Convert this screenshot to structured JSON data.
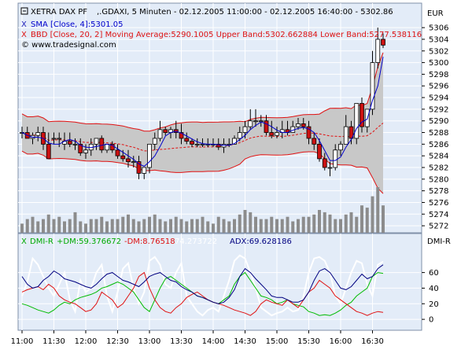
{
  "colors": {
    "panel_bg": "#e3ecf8",
    "band_fill": "#c8c8c8",
    "band_line": "#e01010",
    "ma_line": "#e01010",
    "sma_line": "#0000cc",
    "bull_candle": "#ffffff",
    "bear_candle": "#cc1111",
    "volume": "#8c8c8c",
    "dmi_plus": "#00bb00",
    "dmi_minus": "#e01010",
    "dx": "#ffffff",
    "adx": "#000080",
    "grid": "#ffffff",
    "axis_text": "#000000"
  },
  "header": {
    "line1_instrument": "XETRA DAX PF",
    "line1_rest": ",.GDAXI, 5 Minuten - 02.12.2005 11:00:00 - 02.12.2005 16:40:00 - 5302.86",
    "line2": "SMA [Close, 4]:5301.05",
    "line3": "BBD [Close, 20, 2] Moving Average:5290.1005 Upper Band:5302.662884 Lower Band:5277.538116",
    "line4": "© www.tradesignal.com",
    "currency": "EUR"
  },
  "lower_panel": {
    "dmi_r_label": "DMI-R",
    "plus_dm": "+DM:59.376672",
    "minus_dm": "-DM:8.76518",
    "dx": "74.273722",
    "adx": "ADX:69.628186",
    "right_label": "DMI-R"
  },
  "chart_data": [
    {
      "type": "candlestick",
      "title": "XETRA DAX PF ,.GDAXI, 5 Minuten - 02.12.2005 11:00:00 - 02.12.2005 16:40:00 - 5302.86",
      "x": [
        "11:00",
        "11:05",
        "11:10",
        "11:15",
        "11:20",
        "11:25",
        "11:30",
        "11:35",
        "11:40",
        "11:45",
        "11:50",
        "11:55",
        "12:00",
        "12:05",
        "12:10",
        "12:15",
        "12:20",
        "12:25",
        "12:30",
        "12:35",
        "12:40",
        "12:45",
        "12:50",
        "12:55",
        "13:00",
        "13:05",
        "13:10",
        "13:15",
        "13:20",
        "13:25",
        "13:30",
        "13:35",
        "13:40",
        "13:45",
        "13:50",
        "13:55",
        "14:00",
        "14:05",
        "14:10",
        "14:15",
        "14:20",
        "14:25",
        "14:30",
        "14:35",
        "14:40",
        "14:45",
        "14:50",
        "14:55",
        "15:00",
        "15:05",
        "15:10",
        "15:15",
        "15:20",
        "15:25",
        "15:30",
        "15:35",
        "15:40",
        "15:45",
        "15:50",
        "15:55",
        "16:00",
        "16:05",
        "16:10",
        "16:15",
        "16:20",
        "16:25",
        "16:30",
        "16:35",
        "16:40"
      ],
      "open": [
        5288,
        5288,
        5287,
        5287.5,
        5288,
        5286,
        5287,
        5287,
        5286,
        5286.5,
        5286,
        5286,
        5284.5,
        5285,
        5286,
        5287,
        5285,
        5286,
        5285,
        5284,
        5283.5,
        5283,
        5283,
        5281,
        5282,
        5286,
        5287,
        5288.5,
        5288,
        5288.5,
        5288,
        5287,
        5286.5,
        5286,
        5286,
        5286,
        5286,
        5286,
        5285.5,
        5286,
        5286,
        5287,
        5288,
        5289,
        5290,
        5290,
        5290,
        5288,
        5287.5,
        5288,
        5288.5,
        5288,
        5289,
        5289.5,
        5289,
        5287,
        5286,
        5283.5,
        5282,
        5282,
        5285,
        5286,
        5289,
        5287,
        5293,
        5289,
        5292,
        5300,
        5304
      ],
      "high": [
        5289,
        5289,
        5288,
        5289,
        5289,
        5288,
        5288,
        5288,
        5288,
        5288,
        5287,
        5287,
        5286,
        5287,
        5287,
        5287.5,
        5286,
        5286.5,
        5286,
        5285,
        5285,
        5284,
        5284,
        5282,
        5286,
        5288,
        5290,
        5289,
        5289,
        5290,
        5289.5,
        5288,
        5287,
        5287,
        5287,
        5287,
        5287,
        5287,
        5287,
        5287,
        5287.5,
        5289,
        5290,
        5292,
        5292,
        5291,
        5291,
        5290,
        5289,
        5290,
        5290,
        5290,
        5290.5,
        5290.5,
        5290,
        5288,
        5287,
        5284.5,
        5283,
        5286,
        5286.5,
        5291,
        5290,
        5293,
        5294,
        5292,
        5302,
        5306,
        5305
      ],
      "low": [
        5287,
        5287,
        5286,
        5286.5,
        5285,
        5283.5,
        5286,
        5285.5,
        5285,
        5285.5,
        5285,
        5284,
        5283.5,
        5284,
        5285,
        5284.5,
        5284.5,
        5284.5,
        5283.5,
        5283,
        5282,
        5282,
        5280,
        5280,
        5281,
        5285,
        5286.5,
        5287.5,
        5287,
        5287,
        5286,
        5286,
        5285.5,
        5285.5,
        5285.5,
        5285.5,
        5285.5,
        5285,
        5284.5,
        5285.5,
        5286,
        5286.5,
        5287,
        5288.5,
        5289,
        5289,
        5287.5,
        5287,
        5287,
        5287,
        5287.5,
        5288,
        5288.5,
        5288.5,
        5286,
        5285,
        5283,
        5281.5,
        5280.5,
        5281.5,
        5284,
        5286,
        5286,
        5286,
        5288,
        5288,
        5291,
        5299,
        5302.5
      ],
      "close": [
        5288,
        5287,
        5287.5,
        5288,
        5286,
        5283.5,
        5287,
        5287,
        5286.5,
        5286,
        5286,
        5284.5,
        5285,
        5286,
        5287,
        5285,
        5286,
        5285,
        5284,
        5283.5,
        5283,
        5283,
        5281,
        5282,
        5286,
        5287,
        5288.5,
        5288,
        5288.5,
        5288,
        5287,
        5286.5,
        5286,
        5286,
        5286,
        5286,
        5286,
        5285.5,
        5286,
        5286,
        5287,
        5288,
        5289,
        5290,
        5290,
        5290,
        5288,
        5287.5,
        5288,
        5288.5,
        5288,
        5289,
        5289.5,
        5289,
        5287,
        5286,
        5283.5,
        5282,
        5282,
        5285,
        5286,
        5289,
        5287,
        5293,
        5289,
        5292,
        5300,
        5304,
        5303
      ],
      "volume_relative": [
        0.2,
        0.3,
        0.35,
        0.25,
        0.3,
        0.4,
        0.3,
        0.35,
        0.25,
        0.3,
        0.45,
        0.25,
        0.2,
        0.3,
        0.3,
        0.35,
        0.25,
        0.3,
        0.3,
        0.35,
        0.4,
        0.3,
        0.25,
        0.3,
        0.35,
        0.4,
        0.3,
        0.25,
        0.3,
        0.35,
        0.3,
        0.25,
        0.3,
        0.3,
        0.35,
        0.25,
        0.2,
        0.35,
        0.3,
        0.25,
        0.3,
        0.4,
        0.5,
        0.45,
        0.35,
        0.3,
        0.3,
        0.35,
        0.3,
        0.3,
        0.35,
        0.25,
        0.3,
        0.35,
        0.35,
        0.4,
        0.5,
        0.45,
        0.4,
        0.3,
        0.3,
        0.4,
        0.45,
        0.35,
        0.6,
        0.55,
        0.8,
        1.0,
        0.6
      ],
      "sma_4": [
        5288,
        5287.5,
        5287.2,
        5287.2,
        5287,
        5286.2,
        5286,
        5286,
        5286.5,
        5286.8,
        5286.5,
        5285.8,
        5285.5,
        5285.4,
        5285.6,
        5285.8,
        5286,
        5285.8,
        5285.2,
        5284.6,
        5284,
        5283.4,
        5282.6,
        5282.2,
        5283,
        5284,
        5285.6,
        5287.4,
        5288,
        5288.2,
        5287.9,
        5287.4,
        5286.9,
        5286.4,
        5286.1,
        5286,
        5286,
        5285.9,
        5285.8,
        5285.8,
        5286.1,
        5286.8,
        5287.5,
        5288.5,
        5289.2,
        5289.8,
        5289.5,
        5289,
        5288.4,
        5288,
        5288,
        5288.4,
        5288.7,
        5288.9,
        5288.6,
        5288,
        5286.6,
        5284.9,
        5283.2,
        5283.2,
        5283.8,
        5285.5,
        5286.8,
        5288.7,
        5289.8,
        5290.3,
        5293.5,
        5296,
        5301
      ]
    },
    {
      "type": "line",
      "title": "DMI-R",
      "series_names": [
        "+DM",
        "-DM",
        "DX",
        "ADX"
      ]
    }
  ],
  "axes": {
    "y_ticks": [
      5272,
      5274,
      5276,
      5278,
      5280,
      5282,
      5284,
      5286,
      5288,
      5290,
      5292,
      5294,
      5296,
      5298,
      5300,
      5302,
      5304,
      5306
    ],
    "y_min": 5270.8,
    "y_max": 5310.2,
    "dmi_ticks": [
      0,
      20,
      40,
      60
    ],
    "dmi_min": -14,
    "dmi_max": 110,
    "x_ticks": [
      "11:00",
      "11:30",
      "12:00",
      "12:30",
      "13:00",
      "13:30",
      "14:00",
      "14:30",
      "15:00",
      "15:30",
      "16:00",
      "16:30"
    ]
  },
  "dmi_series": {
    "plus": [
      20,
      18,
      15,
      12,
      10,
      8,
      12,
      18,
      22,
      20,
      25,
      28,
      30,
      32,
      35,
      40,
      42,
      45,
      48,
      45,
      40,
      35,
      25,
      15,
      10,
      25,
      40,
      52,
      55,
      50,
      45,
      40,
      35,
      30,
      28,
      25,
      22,
      20,
      25,
      30,
      45,
      55,
      60,
      50,
      40,
      30,
      28,
      25,
      20,
      22,
      25,
      20,
      18,
      16,
      10,
      8,
      5,
      6,
      5,
      8,
      12,
      18,
      22,
      30,
      35,
      40,
      55,
      60,
      59
    ],
    "minus": [
      35,
      38,
      40,
      42,
      38,
      45,
      40,
      30,
      25,
      22,
      20,
      15,
      10,
      12,
      20,
      35,
      30,
      25,
      15,
      20,
      30,
      40,
      55,
      60,
      40,
      25,
      15,
      10,
      8,
      15,
      20,
      28,
      32,
      35,
      30,
      25,
      22,
      20,
      18,
      15,
      12,
      10,
      8,
      5,
      10,
      20,
      25,
      22,
      20,
      18,
      25,
      20,
      15,
      25,
      35,
      40,
      50,
      45,
      40,
      30,
      25,
      20,
      15,
      10,
      8,
      5,
      8,
      10,
      9
    ],
    "dx": [
      30,
      48,
      78,
      70,
      55,
      40,
      30,
      45,
      60,
      25,
      10,
      50,
      35,
      40,
      60,
      70,
      30,
      10,
      35,
      65,
      72,
      40,
      20,
      35,
      75,
      80,
      70,
      45,
      40,
      60,
      72,
      30,
      20,
      10,
      5,
      12,
      15,
      10,
      30,
      50,
      75,
      82,
      78,
      60,
      40,
      15,
      10,
      5,
      8,
      10,
      15,
      10,
      12,
      30,
      60,
      78,
      80,
      75,
      60,
      30,
      20,
      40,
      60,
      75,
      72,
      45,
      30,
      70,
      74
    ],
    "adx": [
      55,
      45,
      40,
      42,
      50,
      55,
      62,
      58,
      52,
      50,
      48,
      45,
      42,
      40,
      45,
      52,
      58,
      60,
      55,
      50,
      48,
      45,
      42,
      48,
      55,
      58,
      60,
      55,
      50,
      48,
      42,
      38,
      35,
      30,
      28,
      25,
      22,
      20,
      22,
      28,
      38,
      55,
      65,
      60,
      52,
      45,
      38,
      30,
      28,
      28,
      25,
      22,
      22,
      25,
      35,
      50,
      62,
      65,
      60,
      50,
      40,
      38,
      42,
      50,
      58,
      52,
      55,
      65,
      70
    ]
  }
}
